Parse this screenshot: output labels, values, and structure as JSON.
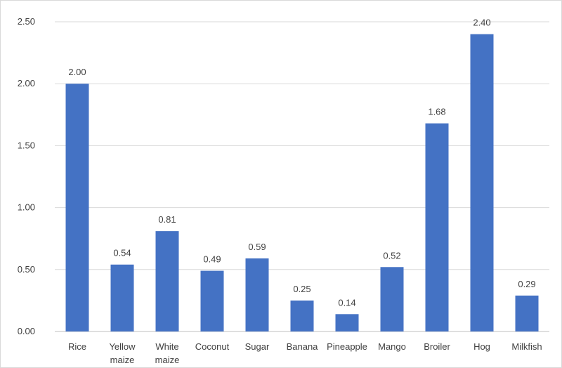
{
  "chart_data": {
    "type": "bar",
    "title": "",
    "xlabel": "",
    "ylabel": "",
    "categories": [
      [
        "Rice"
      ],
      [
        "Yellow",
        "maize"
      ],
      [
        "White",
        "maize"
      ],
      [
        "Coconut"
      ],
      [
        "Sugar"
      ],
      [
        "Banana"
      ],
      [
        "Pineapple"
      ],
      [
        "Mango"
      ],
      [
        "Broiler"
      ],
      [
        "Hog"
      ],
      [
        "Milkfish"
      ]
    ],
    "values": [
      2.0,
      0.54,
      0.81,
      0.49,
      0.59,
      0.25,
      0.14,
      0.52,
      1.68,
      2.4,
      0.29
    ],
    "value_labels": [
      "2.00",
      "0.54",
      "0.81",
      "0.49",
      "0.59",
      "0.25",
      "0.14",
      "0.52",
      "1.68",
      "2.40",
      "0.29"
    ],
    "ylim": [
      0,
      2.5
    ],
    "yticks": [
      0,
      0.5,
      1.0,
      1.5,
      2.0,
      2.5
    ],
    "ytick_labels": [
      "0.00",
      "0.50",
      "1.00",
      "1.50",
      "2.00",
      "2.50"
    ],
    "grid": true,
    "legend": "none",
    "bar_color": "#4472c4"
  }
}
